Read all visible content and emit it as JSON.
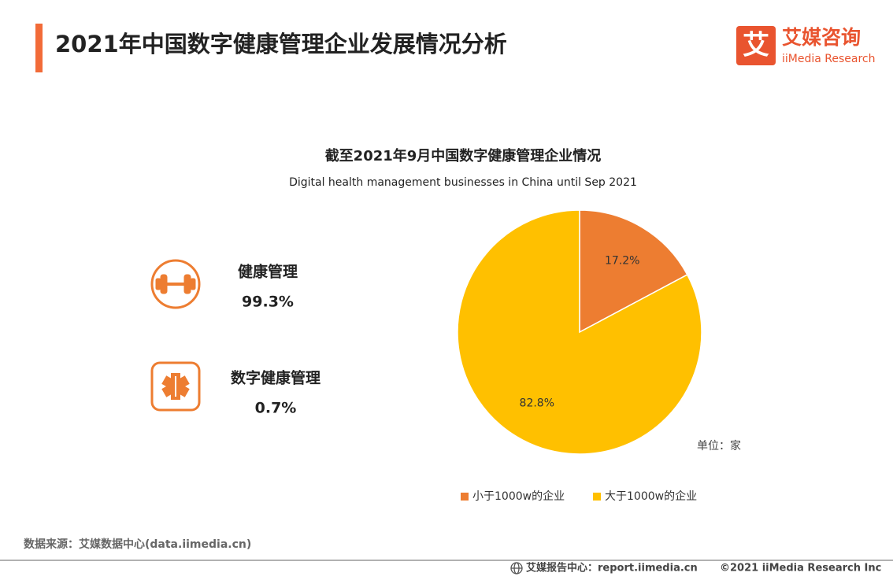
{
  "header": {
    "title": "2021年中国数字健康管理企业发展情况分析",
    "logo_cn": "艾媒咨询",
    "logo_en": "iiMedia Research",
    "logo_mark": "艾"
  },
  "stats": [
    {
      "label": "健康管理",
      "value": "99.3%"
    },
    {
      "label": "数字健康管理",
      "value": "0.7%"
    }
  ],
  "chart_data": {
    "type": "pie",
    "title": "截至2021年9月中国数字健康管理企业情况",
    "subtitle": "Digital health management businesses in China until Sep 2021",
    "categories": [
      "小于1000w的企业",
      "大于1000w的企业"
    ],
    "values": [
      17.2,
      82.8
    ],
    "value_labels": [
      "17.2%",
      "82.8%"
    ],
    "colors": [
      "#ED7D31",
      "#FFC000"
    ],
    "unit_label": "单位：家",
    "legend": "bottom"
  },
  "footer": {
    "source": "数据来源：艾媒数据中心(data.iimedia.cn)",
    "report_center": "艾媒报告中心：report.iimedia.cn",
    "copyright": "©2021  iiMedia Research  Inc"
  }
}
